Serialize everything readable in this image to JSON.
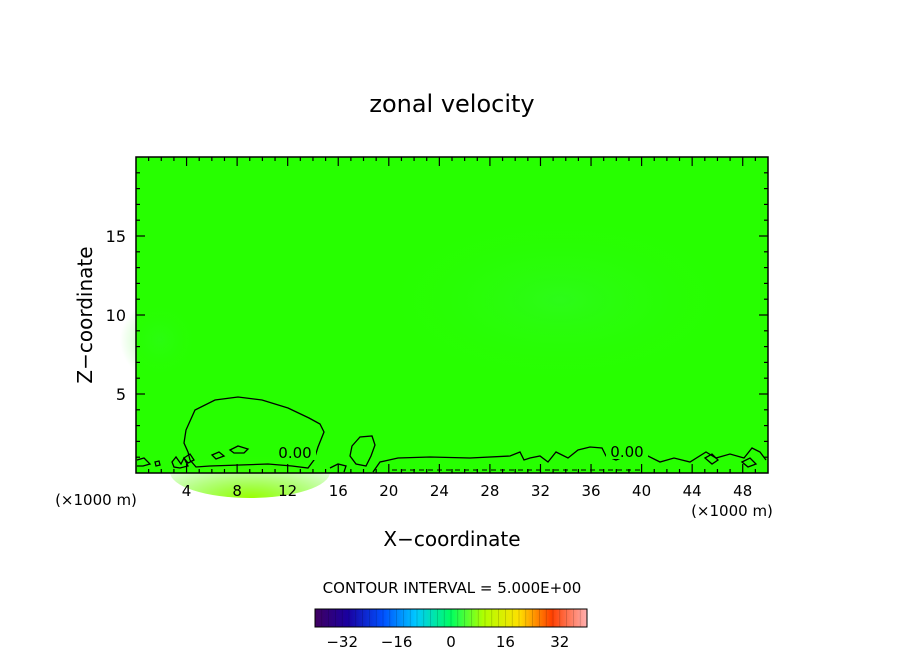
{
  "chart_data": {
    "type": "heatmap",
    "title": "zonal velocity",
    "xlabel": "X−coordinate",
    "ylabel": "Z−coordinate",
    "x_unit": "(×1000 m)",
    "x_unit_right": "(×1000 m)",
    "xlim": [
      0,
      50
    ],
    "ylim": [
      0,
      20
    ],
    "x_ticks": [
      4,
      8,
      12,
      16,
      20,
      24,
      28,
      32,
      36,
      40,
      44,
      48
    ],
    "y_ticks": [
      5,
      10,
      15
    ],
    "contour_interval_text": "CONTOUR INTERVAL = 5.000E+00",
    "contour_labels": [
      "0.00",
      "0.00"
    ],
    "colorbar": {
      "range": [
        -40,
        40
      ],
      "tick_values": [
        -32,
        -16,
        0,
        16,
        32
      ],
      "tick_labels": [
        "−32",
        "−16",
        "0",
        "16",
        "32"
      ]
    },
    "field_note": "Field near zero everywhere (green); weak positive (yellow-green) values near surface around x=4–14"
  }
}
